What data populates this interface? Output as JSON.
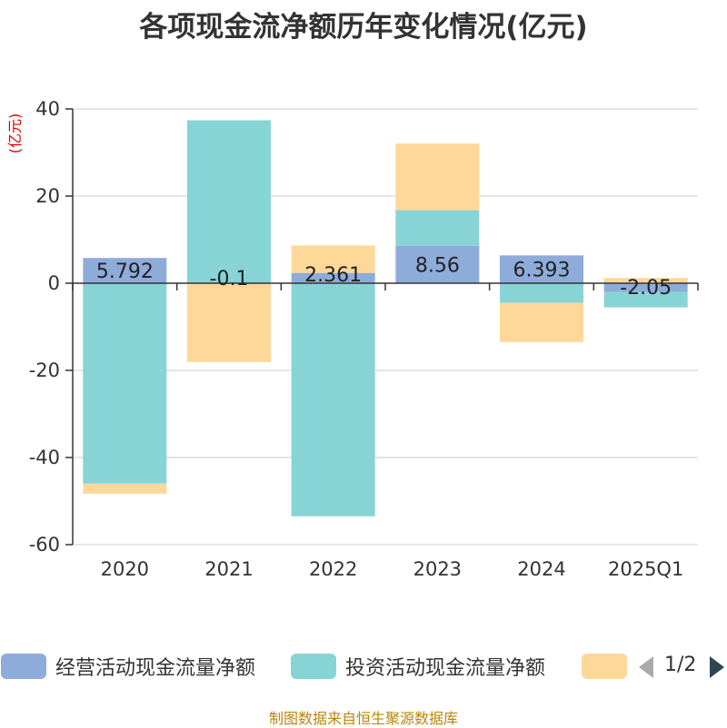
{
  "chart_data": {
    "type": "bar",
    "stacked": true,
    "title": "各项现金流净额历年变化情况(亿元)",
    "ylabel": "(亿元)",
    "ylim": [
      -60,
      40
    ],
    "yticks": [
      40,
      20,
      0,
      -20,
      -40,
      -60
    ],
    "categories": [
      "2020",
      "2021",
      "2022",
      "2023",
      "2024",
      "2025Q1"
    ],
    "series": [
      {
        "name": "经营活动现金流量净额",
        "color": "#8eacda",
        "values": [
          5.792,
          -0.1,
          2.361,
          8.56,
          6.393,
          -2.05
        ]
      },
      {
        "name": "投资活动现金流量净额",
        "color": "#87d4d7",
        "values": [
          -46,
          37.4,
          -53.5,
          8.2,
          -4.5,
          -3.5
        ]
      },
      {
        "name": "",
        "color": "#fed899",
        "values": [
          -2.3,
          -18,
          6.3,
          15.3,
          -9,
          1.2
        ]
      }
    ],
    "data_labels": [
      "5.792",
      "-0.1",
      "2.361",
      "8.56",
      "6.393",
      "-2.05"
    ]
  },
  "legend": {
    "items": [
      {
        "label": "经营活动现金流量净额",
        "color": "#8eacda"
      },
      {
        "label": "投资活动现金流量净额",
        "color": "#87d4d7"
      },
      {
        "label": "",
        "color": "#fed899"
      }
    ],
    "page": "1/2"
  },
  "source": "制图数据来自恒生聚源数据库"
}
